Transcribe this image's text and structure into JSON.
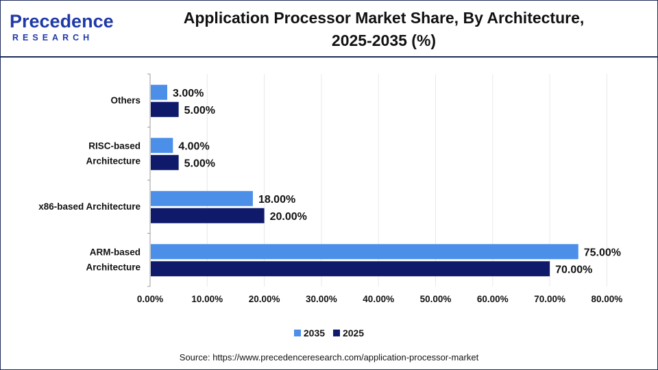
{
  "brand": {
    "logo_text": "Precedence",
    "logo_subtext": "RESEARCH"
  },
  "title_line1": "Application Processor Market Share, By Architecture,",
  "title_line2": "2025-2035 (%)",
  "source": "Source: https://www.precedenceresearch.com/application-processor-market",
  "colors": {
    "series_2035": "#4b8fe8",
    "series_2025": "#0f1a6b",
    "axis": "#9a9a9a",
    "grid": "#e8e8e8",
    "border": "#1b2a5a"
  },
  "chart_data": {
    "type": "bar",
    "orientation": "horizontal",
    "title": "Application Processor Market Share, By Architecture, 2025-2035 (%)",
    "categories": [
      [
        "Others"
      ],
      [
        "RISC-based",
        "Architecture"
      ],
      [
        "x86-based Architecture"
      ],
      [
        "ARM-based",
        "Architecture"
      ]
    ],
    "series": [
      {
        "name": "2035",
        "values": [
          3.0,
          4.0,
          18.0,
          75.0
        ],
        "labels": [
          "3.00%",
          "4.00%",
          "18.00%",
          "75.00%"
        ]
      },
      {
        "name": "2025",
        "values": [
          5.0,
          5.0,
          20.0,
          70.0
        ],
        "labels": [
          "5.00%",
          "5.00%",
          "20.00%",
          "70.00%"
        ]
      }
    ],
    "xlim": [
      0,
      80
    ],
    "xticks": [
      "0.00%",
      "10.00%",
      "20.00%",
      "30.00%",
      "40.00%",
      "50.00%",
      "60.00%",
      "70.00%",
      "80.00%"
    ],
    "grid": true,
    "legend_position": "bottom-center"
  }
}
